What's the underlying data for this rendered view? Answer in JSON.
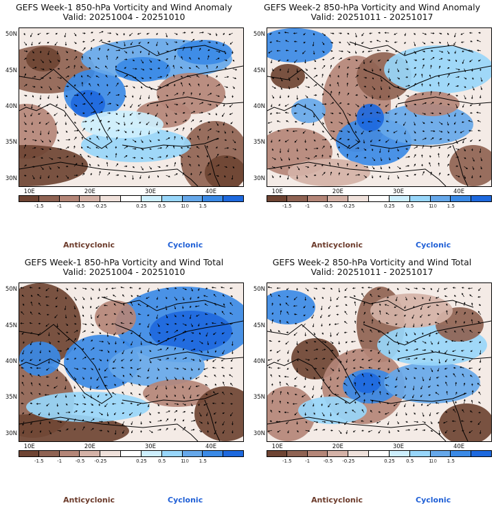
{
  "chart_data": [
    {
      "type": "heatmap",
      "title": "GEFS Week-1 850-hPa Vorticity and Wind Anomaly",
      "subtitle": "Valid: 20251004 - 20251010",
      "xlabel": "",
      "ylabel": "",
      "x_ticks": [
        "10E",
        "20E",
        "30E",
        "40E"
      ],
      "y_ticks": [
        "50N",
        "45N",
        "40N",
        "35N",
        "30N"
      ],
      "xlim": [
        8,
        45
      ],
      "ylim": [
        29,
        51
      ],
      "colorbar": {
        "levels": [
          "-1.5",
          "-1",
          "-0.5",
          "-0.25",
          "0.25",
          "0.5",
          "1",
          "1.5"
        ],
        "unit_label": "10",
        "colors": [
          "#6e4433",
          "#8f6353",
          "#b48678",
          "#d4b2a7",
          "#efe1db",
          "#ffffff",
          "#cdeffd",
          "#98d6fa",
          "#66a8ea",
          "#3b8ae6",
          "#1e69de"
        ]
      },
      "legend": [
        "Anticyclonic",
        "Cyclonic"
      ]
    },
    {
      "type": "heatmap",
      "title": "GEFS Week-2 850-hPa Vorticity and Wind Anomaly",
      "subtitle": "Valid: 20251011 - 20251017",
      "xlabel": "",
      "ylabel": "",
      "x_ticks": [
        "10E",
        "20E",
        "30E",
        "40E"
      ],
      "y_ticks": [
        "50N",
        "45N",
        "40N",
        "35N",
        "30N"
      ],
      "xlim": [
        8,
        45
      ],
      "ylim": [
        29,
        51
      ],
      "colorbar": {
        "levels": [
          "-1.5",
          "-1",
          "-0.5",
          "-0.25",
          "0.25",
          "0.5",
          "1",
          "1.5"
        ],
        "unit_label": "10",
        "colors": [
          "#6e4433",
          "#8f6353",
          "#b48678",
          "#d4b2a7",
          "#efe1db",
          "#ffffff",
          "#cdeffd",
          "#98d6fa",
          "#66a8ea",
          "#3b8ae6",
          "#1e69de"
        ]
      },
      "legend": [
        "Anticyclonic",
        "Cyclonic"
      ]
    },
    {
      "type": "heatmap",
      "title": "GEFS Week-1 850-hPa Vorticity and Wind Total",
      "subtitle": "Valid: 20251004 - 20251010",
      "xlabel": "",
      "ylabel": "",
      "x_ticks": [
        "10E",
        "20E",
        "30E",
        "40E"
      ],
      "y_ticks": [
        "50N",
        "45N",
        "40N",
        "35N",
        "30N"
      ],
      "xlim": [
        8,
        45
      ],
      "ylim": [
        29,
        51
      ],
      "colorbar": {
        "levels": [
          "-1.5",
          "-1",
          "-0.5",
          "-0.25",
          "0.25",
          "0.5",
          "1",
          "1.5"
        ],
        "unit_label": "10",
        "colors": [
          "#6e4433",
          "#8f6353",
          "#b48678",
          "#d4b2a7",
          "#efe1db",
          "#ffffff",
          "#cdeffd",
          "#98d6fa",
          "#66a8ea",
          "#3b8ae6",
          "#1e69de"
        ]
      },
      "legend": [
        "Anticyclonic",
        "Cyclonic"
      ]
    },
    {
      "type": "heatmap",
      "title": "GEFS Week-2 850-hPa Vorticity and Wind Total",
      "subtitle": "Valid: 20251011 - 20251017",
      "xlabel": "",
      "ylabel": "",
      "x_ticks": [
        "10E",
        "20E",
        "30E",
        "40E"
      ],
      "y_ticks": [
        "50N",
        "45N",
        "40N",
        "35N",
        "30N"
      ],
      "xlim": [
        8,
        45
      ],
      "ylim": [
        29,
        51
      ],
      "colorbar": {
        "levels": [
          "-1.5",
          "-1",
          "-0.5",
          "-0.25",
          "0.25",
          "0.5",
          "1",
          "1.5"
        ],
        "unit_label": "10",
        "colors": [
          "#6e4433",
          "#8f6353",
          "#b48678",
          "#d4b2a7",
          "#efe1db",
          "#ffffff",
          "#cdeffd",
          "#98d6fa",
          "#66a8ea",
          "#3b8ae6",
          "#1e69de"
        ]
      },
      "legend": [
        "Anticyclonic",
        "Cyclonic"
      ]
    }
  ]
}
